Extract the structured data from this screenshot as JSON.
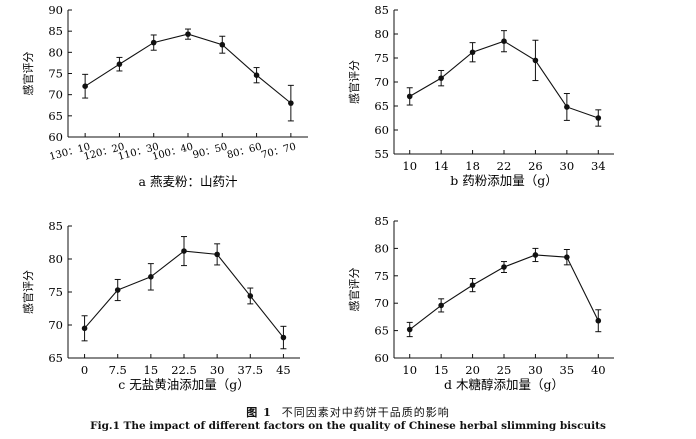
{
  "figure": {
    "caption_cn_prefix": "图 1",
    "caption_cn": "不同因素对中药饼干品质的影响",
    "caption_en": "Fig.1 The impact of different factors on the quality of Chinese herbal slimming biscuits"
  },
  "chart_data": [
    {
      "id": "a",
      "type": "line",
      "xlabel": "a 燕麦粉：山药汁",
      "ylabel": "感官评分",
      "categories": [
        "130：10",
        "120：20",
        "110：30",
        "100：40",
        "90：50",
        "80：60",
        "70：70"
      ],
      "values": [
        72.0,
        77.2,
        82.3,
        84.3,
        81.8,
        74.6,
        68.0
      ],
      "errors": [
        2.8,
        1.6,
        1.8,
        1.2,
        2.0,
        1.8,
        4.2
      ],
      "ylim": [
        60,
        90
      ],
      "yticks": [
        60,
        65,
        70,
        75,
        80,
        85,
        90
      ],
      "grid": false,
      "legend": "none"
    },
    {
      "id": "b",
      "type": "line",
      "xlabel": "b 药粉添加量（g）",
      "ylabel": "感官评分",
      "categories": [
        "10",
        "14",
        "18",
        "22",
        "26",
        "30",
        "34"
      ],
      "values": [
        67.0,
        70.8,
        76.2,
        78.5,
        74.5,
        64.8,
        62.5
      ],
      "errors": [
        1.8,
        1.6,
        2.0,
        2.2,
        4.2,
        2.8,
        1.7
      ],
      "ylim": [
        55,
        85
      ],
      "yticks": [
        55,
        60,
        65,
        70,
        75,
        80,
        85
      ],
      "grid": false,
      "legend": "none"
    },
    {
      "id": "c",
      "type": "line",
      "xlabel": "c 无盐黄油添加量（g）",
      "ylabel": "感官评分",
      "categories": [
        "0",
        "7.5",
        "15",
        "22.5",
        "30",
        "37.5",
        "45"
      ],
      "values": [
        69.5,
        75.3,
        77.3,
        81.2,
        80.7,
        74.4,
        68.1
      ],
      "errors": [
        1.9,
        1.6,
        2.0,
        2.2,
        1.6,
        1.2,
        1.7
      ],
      "ylim": [
        65,
        85
      ],
      "yticks": [
        65,
        70,
        75,
        80,
        85
      ],
      "grid": false,
      "legend": "none"
    },
    {
      "id": "d",
      "type": "line",
      "xlabel": "d 木糖醇添加量（g）",
      "ylabel": "感官评分",
      "categories": [
        "10",
        "15",
        "20",
        "25",
        "30",
        "35",
        "40"
      ],
      "values": [
        65.2,
        69.6,
        73.3,
        76.6,
        78.8,
        78.4,
        66.8
      ],
      "errors": [
        1.3,
        1.2,
        1.2,
        1.0,
        1.2,
        1.4,
        2.0
      ],
      "ylim": [
        60,
        85
      ],
      "yticks": [
        60,
        65,
        70,
        75,
        80,
        85
      ],
      "grid": false,
      "legend": "none"
    }
  ]
}
